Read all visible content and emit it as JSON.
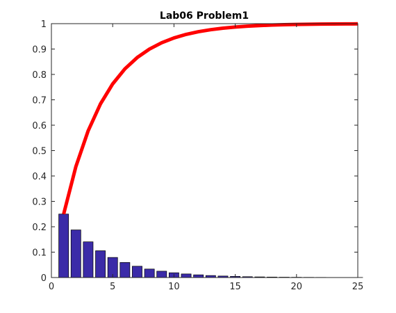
{
  "chart_data": {
    "type": "bar",
    "title": "Lab06 Problem1",
    "xlabel": "",
    "ylabel": "",
    "xlim": [
      0,
      25
    ],
    "ylim": [
      0,
      1
    ],
    "x_ticks": [
      "0",
      "5",
      "10",
      "15",
      "20",
      "25"
    ],
    "y_ticks": [
      "0",
      "0.1",
      "0.2",
      "0.3",
      "0.4",
      "0.5",
      "0.6",
      "0.7",
      "0.8",
      "0.9",
      "1"
    ],
    "grid": false,
    "bars": {
      "x": [
        1,
        2,
        3,
        4,
        5,
        6,
        7,
        8,
        9,
        10,
        11,
        12,
        13,
        14,
        15,
        16,
        17,
        18,
        19,
        20,
        21,
        22,
        23,
        24,
        25
      ],
      "values": [
        0.25,
        0.1875,
        0.1406,
        0.1055,
        0.0791,
        0.0593,
        0.0445,
        0.0334,
        0.025,
        0.0188,
        0.0141,
        0.0106,
        0.0079,
        0.0059,
        0.0045,
        0.0033,
        0.0025,
        0.0019,
        0.0014,
        0.0011,
        0.0008,
        0.0006,
        0.0004,
        0.0003,
        0.0003
      ],
      "color": "#3b2ba8"
    },
    "line": {
      "x": [
        1,
        2,
        3,
        4,
        5,
        6,
        7,
        8,
        9,
        10,
        11,
        12,
        13,
        14,
        15,
        16,
        17,
        18,
        19,
        20,
        21,
        22,
        23,
        24,
        25
      ],
      "values": [
        0.25,
        0.4375,
        0.5781,
        0.6836,
        0.7627,
        0.822,
        0.8665,
        0.8999,
        0.9249,
        0.9437,
        0.9578,
        0.9683,
        0.9762,
        0.9822,
        0.9866,
        0.99,
        0.9925,
        0.9944,
        0.9958,
        0.9968,
        0.9976,
        0.9982,
        0.9987,
        0.999,
        0.9992
      ],
      "color": "#ff0000"
    }
  }
}
